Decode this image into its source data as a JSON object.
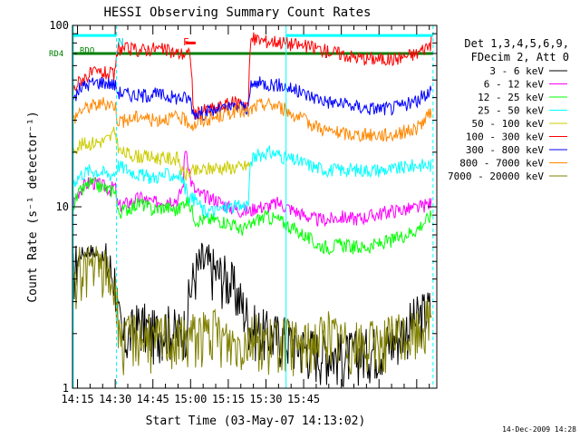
{
  "chart_data": {
    "type": "line",
    "title": "HESSI Observing Summary Count Rates",
    "xlabel": "Start Time (03-May-07 14:13:02)",
    "ylabel": "Count Rate (s⁻¹ detector⁻¹)",
    "x_unit": "minutes",
    "xlim": [
      13.0,
      158.0
    ],
    "ylog": true,
    "ylim": [
      1,
      100
    ],
    "x_tick_values": [
      15,
      30,
      45,
      60,
      75,
      90,
      105
    ],
    "x_tick_labels": [
      "14:15",
      "14:30",
      "14:45",
      "15:00",
      "15:15",
      "15:30",
      "15:45"
    ],
    "y_tick_values": [
      1,
      10,
      100
    ],
    "y_tick_labels": [
      "1",
      "10",
      "100"
    ],
    "legend_position": "right",
    "legend_header": [
      "Det 1,3,4,5,6,9,",
      "FDecim 2, Att 0"
    ],
    "footer_date": "14-Dec-2009 14:28",
    "markers": [
      {
        "label": "N",
        "x": 31,
        "color": "#00cccc"
      },
      {
        "label": "F",
        "x": 57,
        "color": "#ff0000"
      }
    ],
    "flag_bars": [
      {
        "label": "RDO",
        "color": "#00ffff",
        "segments": [
          [
            13,
            30.5
          ],
          [
            98,
            156.5
          ]
        ],
        "y": 88
      },
      {
        "label": "RD4",
        "color": "#008000",
        "segments": [
          [
            13,
            30.5
          ],
          [
            30.5,
            84
          ],
          [
            84,
            156.5
          ]
        ],
        "y": 70
      },
      {
        "label": "",
        "color": "#ff0000",
        "segments": [
          [
            58,
            62
          ]
        ],
        "y": 80
      }
    ],
    "vlines_solid": [
      13.3,
      98
    ],
    "vlines_dashed": [
      30.5,
      156.5
    ],
    "series": [
      {
        "name": "3 - 6 keV",
        "color": "#000000",
        "points": [
          [
            13,
            4.1
          ],
          [
            16,
            5.5
          ],
          [
            20,
            5.8
          ],
          [
            25,
            5.2
          ],
          [
            28,
            4.5
          ],
          [
            30,
            4.0
          ],
          [
            31,
            2.5
          ],
          [
            33,
            1.8
          ],
          [
            36,
            2.0
          ],
          [
            40,
            2.3
          ],
          [
            45,
            2.0
          ],
          [
            50,
            2.2
          ],
          [
            55,
            2.0
          ],
          [
            58,
            2.2
          ],
          [
            60,
            3.5
          ],
          [
            62,
            4.4
          ],
          [
            65,
            5.0
          ],
          [
            70,
            4.4
          ],
          [
            75,
            4.0
          ],
          [
            80,
            3.0
          ],
          [
            84,
            2.2
          ],
          [
            90,
            2.0
          ],
          [
            98,
            1.9
          ],
          [
            105,
            1.7
          ],
          [
            110,
            1.6
          ],
          [
            115,
            1.6
          ],
          [
            120,
            1.5
          ],
          [
            130,
            1.6
          ],
          [
            140,
            1.8
          ],
          [
            150,
            2.4
          ],
          [
            156,
            2.8
          ]
        ]
      },
      {
        "name": "6 - 12 keV",
        "color": "#ff00ff",
        "points": [
          [
            13,
            10.2
          ],
          [
            16,
            12.5
          ],
          [
            20,
            13.8
          ],
          [
            25,
            13.0
          ],
          [
            28,
            12.5
          ],
          [
            30,
            13.0
          ],
          [
            31,
            10.0
          ],
          [
            35,
            10.5
          ],
          [
            40,
            11.2
          ],
          [
            45,
            10.5
          ],
          [
            50,
            11.0
          ],
          [
            55,
            11.0
          ],
          [
            57,
            13.0
          ],
          [
            58,
            22.0
          ],
          [
            59,
            18.0
          ],
          [
            60,
            14.0
          ],
          [
            62,
            12.0
          ],
          [
            65,
            11.5
          ],
          [
            70,
            11.0
          ],
          [
            75,
            10.0
          ],
          [
            80,
            9.5
          ],
          [
            84,
            9.5
          ],
          [
            86,
            10.0
          ],
          [
            90,
            10.0
          ],
          [
            95,
            10.5
          ],
          [
            98,
            10.0
          ],
          [
            105,
            9.0
          ],
          [
            110,
            8.5
          ],
          [
            115,
            8.5
          ],
          [
            120,
            8.8
          ],
          [
            125,
            8.6
          ],
          [
            130,
            8.8
          ],
          [
            140,
            9.5
          ],
          [
            150,
            9.8
          ],
          [
            156,
            10.5
          ]
        ]
      },
      {
        "name": "12 - 25 keV",
        "color": "#00ff00",
        "points": [
          [
            13,
            10.0
          ],
          [
            16,
            12.0
          ],
          [
            20,
            13.5
          ],
          [
            25,
            12.8
          ],
          [
            28,
            12.2
          ],
          [
            30,
            12.8
          ],
          [
            31,
            9.2
          ],
          [
            35,
            9.8
          ],
          [
            40,
            10.5
          ],
          [
            45,
            9.6
          ],
          [
            50,
            10.0
          ],
          [
            55,
            9.5
          ],
          [
            58,
            11.0
          ],
          [
            60,
            10.0
          ],
          [
            62,
            8.5
          ],
          [
            65,
            8.5
          ],
          [
            70,
            8.5
          ],
          [
            75,
            8.2
          ],
          [
            80,
            7.5
          ],
          [
            84,
            7.8
          ],
          [
            86,
            8.5
          ],
          [
            90,
            8.8
          ],
          [
            95,
            8.5
          ],
          [
            98,
            8.0
          ],
          [
            105,
            7.0
          ],
          [
            110,
            6.2
          ],
          [
            115,
            6.0
          ],
          [
            120,
            6.2
          ],
          [
            125,
            6.0
          ],
          [
            130,
            6.0
          ],
          [
            140,
            6.5
          ],
          [
            150,
            7.5
          ],
          [
            156,
            9.0
          ]
        ]
      },
      {
        "name": "25 - 50 keV",
        "color": "#00ffff",
        "points": [
          [
            13,
            13.5
          ],
          [
            16,
            15.0
          ],
          [
            20,
            16.0
          ],
          [
            25,
            15.5
          ],
          [
            28,
            15.0
          ],
          [
            30,
            15.5
          ],
          [
            31,
            17.0
          ],
          [
            35,
            16.0
          ],
          [
            40,
            15.0
          ],
          [
            45,
            14.5
          ],
          [
            50,
            15.0
          ],
          [
            55,
            15.0
          ],
          [
            57,
            14.0
          ],
          [
            58,
            12.5
          ],
          [
            60,
            11.0
          ],
          [
            62,
            11.0
          ],
          [
            65,
            9.5
          ],
          [
            70,
            9.5
          ],
          [
            75,
            10.0
          ],
          [
            80,
            10.0
          ],
          [
            83,
            10.5
          ],
          [
            84,
            18.0
          ],
          [
            86,
            19.0
          ],
          [
            90,
            20.0
          ],
          [
            95,
            19.5
          ],
          [
            98,
            18.5
          ],
          [
            105,
            17.5
          ],
          [
            110,
            16.5
          ],
          [
            115,
            16.0
          ],
          [
            120,
            16.0
          ],
          [
            125,
            16.0
          ],
          [
            130,
            16.0
          ],
          [
            140,
            16.0
          ],
          [
            150,
            17.0
          ],
          [
            156,
            17.0
          ]
        ]
      },
      {
        "name": "50 - 100 keV",
        "color": "#cccc00",
        "points": [
          [
            13,
            21.0
          ],
          [
            16,
            22.0
          ],
          [
            20,
            22.5
          ],
          [
            25,
            23.0
          ],
          [
            28,
            24.0
          ],
          [
            30,
            26.0
          ],
          [
            31,
            22.0
          ],
          [
            32,
            20.0
          ],
          [
            40,
            19.0
          ],
          [
            50,
            18.5
          ],
          [
            55,
            18.5
          ],
          [
            57,
            15.0
          ],
          [
            60,
            15.5
          ],
          [
            65,
            16.0
          ],
          [
            70,
            16.5
          ],
          [
            75,
            16.5
          ],
          [
            80,
            16.5
          ],
          [
            83,
            17.0
          ],
          [
            84,
            17.0
          ]
        ]
      },
      {
        "name": "100 - 300 keV",
        "color": "#ff0000",
        "points": [
          [
            13,
            43.0
          ],
          [
            16,
            50.0
          ],
          [
            20,
            54.0
          ],
          [
            25,
            55.0
          ],
          [
            28,
            54.0
          ],
          [
            30,
            53.0
          ],
          [
            31,
            75.0
          ],
          [
            35,
            74.0
          ],
          [
            40,
            73.0
          ],
          [
            45,
            75.0
          ],
          [
            50,
            73.0
          ],
          [
            55,
            70.0
          ],
          [
            58,
            70.0
          ],
          [
            60,
            69.0
          ],
          [
            61,
            35.0
          ],
          [
            62,
            32.0
          ],
          [
            65,
            34.0
          ],
          [
            70,
            35.0
          ],
          [
            75,
            37.0
          ],
          [
            80,
            38.0
          ],
          [
            83,
            37.0
          ],
          [
            84,
            84.0
          ],
          [
            86,
            84.0
          ],
          [
            90,
            82.0
          ],
          [
            95,
            82.0
          ],
          [
            98,
            80.0
          ],
          [
            105,
            77.0
          ],
          [
            110,
            75.0
          ],
          [
            115,
            72.0
          ],
          [
            120,
            70.0
          ],
          [
            125,
            67.0
          ],
          [
            130,
            66.0
          ],
          [
            140,
            65.0
          ],
          [
            150,
            70.0
          ],
          [
            156,
            80.0
          ]
        ]
      },
      {
        "name": "300 - 800 keV",
        "color": "#0000ff",
        "points": [
          [
            13,
            38.0
          ],
          [
            16,
            45.0
          ],
          [
            20,
            48.0
          ],
          [
            25,
            49.0
          ],
          [
            28,
            48.0
          ],
          [
            30,
            47.0
          ],
          [
            31,
            43.0
          ],
          [
            35,
            42.0
          ],
          [
            40,
            41.0
          ],
          [
            45,
            42.0
          ],
          [
            50,
            41.0
          ],
          [
            55,
            40.0
          ],
          [
            58,
            40.0
          ],
          [
            60,
            39.0
          ],
          [
            61,
            33.0
          ],
          [
            65,
            33.0
          ],
          [
            70,
            34.0
          ],
          [
            75,
            35.0
          ],
          [
            80,
            36.0
          ],
          [
            83,
            35.0
          ],
          [
            84,
            46.0
          ],
          [
            86,
            48.0
          ],
          [
            90,
            48.0
          ],
          [
            95,
            47.0
          ],
          [
            98,
            46.0
          ],
          [
            105,
            42.0
          ],
          [
            110,
            40.0
          ],
          [
            115,
            38.0
          ],
          [
            120,
            37.0
          ],
          [
            125,
            36.0
          ],
          [
            130,
            35.0
          ],
          [
            140,
            35.0
          ],
          [
            150,
            38.0
          ],
          [
            156,
            45.0
          ]
        ]
      },
      {
        "name": "800 - 7000 keV",
        "color": "#ff8800",
        "points": [
          [
            13,
            30.0
          ],
          [
            16,
            34.0
          ],
          [
            20,
            36.0
          ],
          [
            25,
            37.0
          ],
          [
            28,
            37.0
          ],
          [
            30,
            36.5
          ],
          [
            31,
            30.0
          ],
          [
            35,
            30.0
          ],
          [
            40,
            32.0
          ],
          [
            45,
            30.0
          ],
          [
            50,
            31.0
          ],
          [
            55,
            31.0
          ],
          [
            58,
            30.0
          ],
          [
            60,
            29.0
          ],
          [
            61,
            28.0
          ],
          [
            65,
            30.0
          ],
          [
            70,
            31.0
          ],
          [
            75,
            33.0
          ],
          [
            80,
            34.0
          ],
          [
            83,
            33.0
          ],
          [
            84,
            34.0
          ],
          [
            86,
            36.0
          ],
          [
            90,
            37.0
          ],
          [
            95,
            36.0
          ],
          [
            98,
            34.0
          ],
          [
            105,
            30.0
          ],
          [
            110,
            28.0
          ],
          [
            115,
            26.0
          ],
          [
            120,
            25.5
          ],
          [
            125,
            25.0
          ],
          [
            130,
            25.0
          ],
          [
            140,
            25.0
          ],
          [
            150,
            27.0
          ],
          [
            156,
            33.0
          ]
        ]
      },
      {
        "name": "7000 - 20000 keV",
        "color": "#808000",
        "points": [
          [
            13,
            3.2
          ],
          [
            16,
            4.6
          ],
          [
            20,
            4.7
          ],
          [
            25,
            4.5
          ],
          [
            28,
            4.2
          ],
          [
            30,
            3.4
          ],
          [
            31,
            2.6
          ],
          [
            33,
            1.6
          ],
          [
            36,
            2.0
          ],
          [
            40,
            2.0
          ],
          [
            45,
            1.8
          ],
          [
            50,
            2.0
          ],
          [
            55,
            1.8
          ],
          [
            58,
            1.9
          ],
          [
            60,
            2.0
          ],
          [
            65,
            2.0
          ],
          [
            70,
            2.0
          ],
          [
            75,
            1.8
          ],
          [
            80,
            1.8
          ],
          [
            84,
            2.0
          ],
          [
            90,
            1.8
          ],
          [
            98,
            1.8
          ],
          [
            105,
            1.7
          ],
          [
            110,
            1.9
          ],
          [
            115,
            2.0
          ],
          [
            120,
            1.8
          ],
          [
            130,
            1.7
          ],
          [
            140,
            1.9
          ],
          [
            150,
            2.0
          ],
          [
            156,
            2.5
          ]
        ]
      }
    ]
  }
}
